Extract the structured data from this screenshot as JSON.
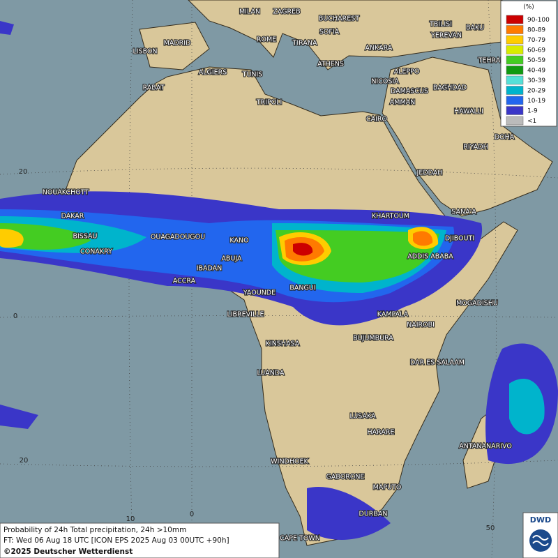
{
  "map": {
    "legend": {
      "title": "(%)",
      "items": [
        {
          "label": "90-100",
          "color": "#cc0000"
        },
        {
          "label": "80-89",
          "color": "#ff7a00"
        },
        {
          "label": "70-79",
          "color": "#ffcc00"
        },
        {
          "label": "60-69",
          "color": "#d8ec00"
        },
        {
          "label": "50-59",
          "color": "#44cc22"
        },
        {
          "label": "40-49",
          "color": "#119911"
        },
        {
          "label": "30-39",
          "color": "#55e0d8"
        },
        {
          "label": "20-29",
          "color": "#00b4cc"
        },
        {
          "label": "10-19",
          "color": "#2266ee"
        },
        {
          "label": "1-9",
          "color": "#3a36c8"
        },
        {
          "label": "<1",
          "color": "#bbbbbb"
        }
      ]
    },
    "cities": [
      "MILAN",
      "ZAGREB",
      "BUCHAREST",
      "TBILISI",
      "BAKU",
      "MADRID",
      "ROME",
      "SOFIA",
      "YEREVAN",
      "LISBON",
      "TIRANA",
      "ANKARA",
      "TEHRAN",
      "ALGIERS",
      "TUNIS",
      "ATHENS",
      "ALEPPO",
      "RABAT",
      "NICOSIA",
      "BAGHDAD",
      "DAMASCUS",
      "AMMAN",
      "TRIPOLI",
      "HAWALLI",
      "CAIRO",
      "DOHA",
      "RIYADH",
      "JEDDAH",
      "NOUAKCHOTT",
      "KHARTOUM",
      "SANA'A",
      "DAKAR",
      "BISSAU",
      "OUAGADOUGOU",
      "KANO",
      "DJIBOUTI",
      "CONAKRY",
      "ABUJA",
      "ADDIS ABABA",
      "IBADAN",
      "ACCRA",
      "BANGUI",
      "YAOUNDE",
      "MOGADISHU",
      "LIBREVILLE",
      "KAMPALA",
      "NAIROBI",
      "KINSHASA",
      "BUJUMBURA",
      "DAR ES SALAAM",
      "LUANDA",
      "LUSAKA",
      "HARARE",
      "ANTANANARIVO",
      "WINDHOEK",
      "GABORONE",
      "MAPUTO",
      "DURBAN",
      "CAPE TOWN"
    ],
    "grid_labels": [
      20,
      0,
      20,
      10,
      0,
      50
    ],
    "footer": {
      "lines": [
        "Probability of 24h Total precipitation, 24h >10mm",
        "FT: Wed 06 Aug 18 UTC [ICON EPS 2025 Aug 03 00UTC +90h]"
      ],
      "copyright": "©2025 Deutscher Wetterdienst"
    },
    "logo": "DWD"
  }
}
